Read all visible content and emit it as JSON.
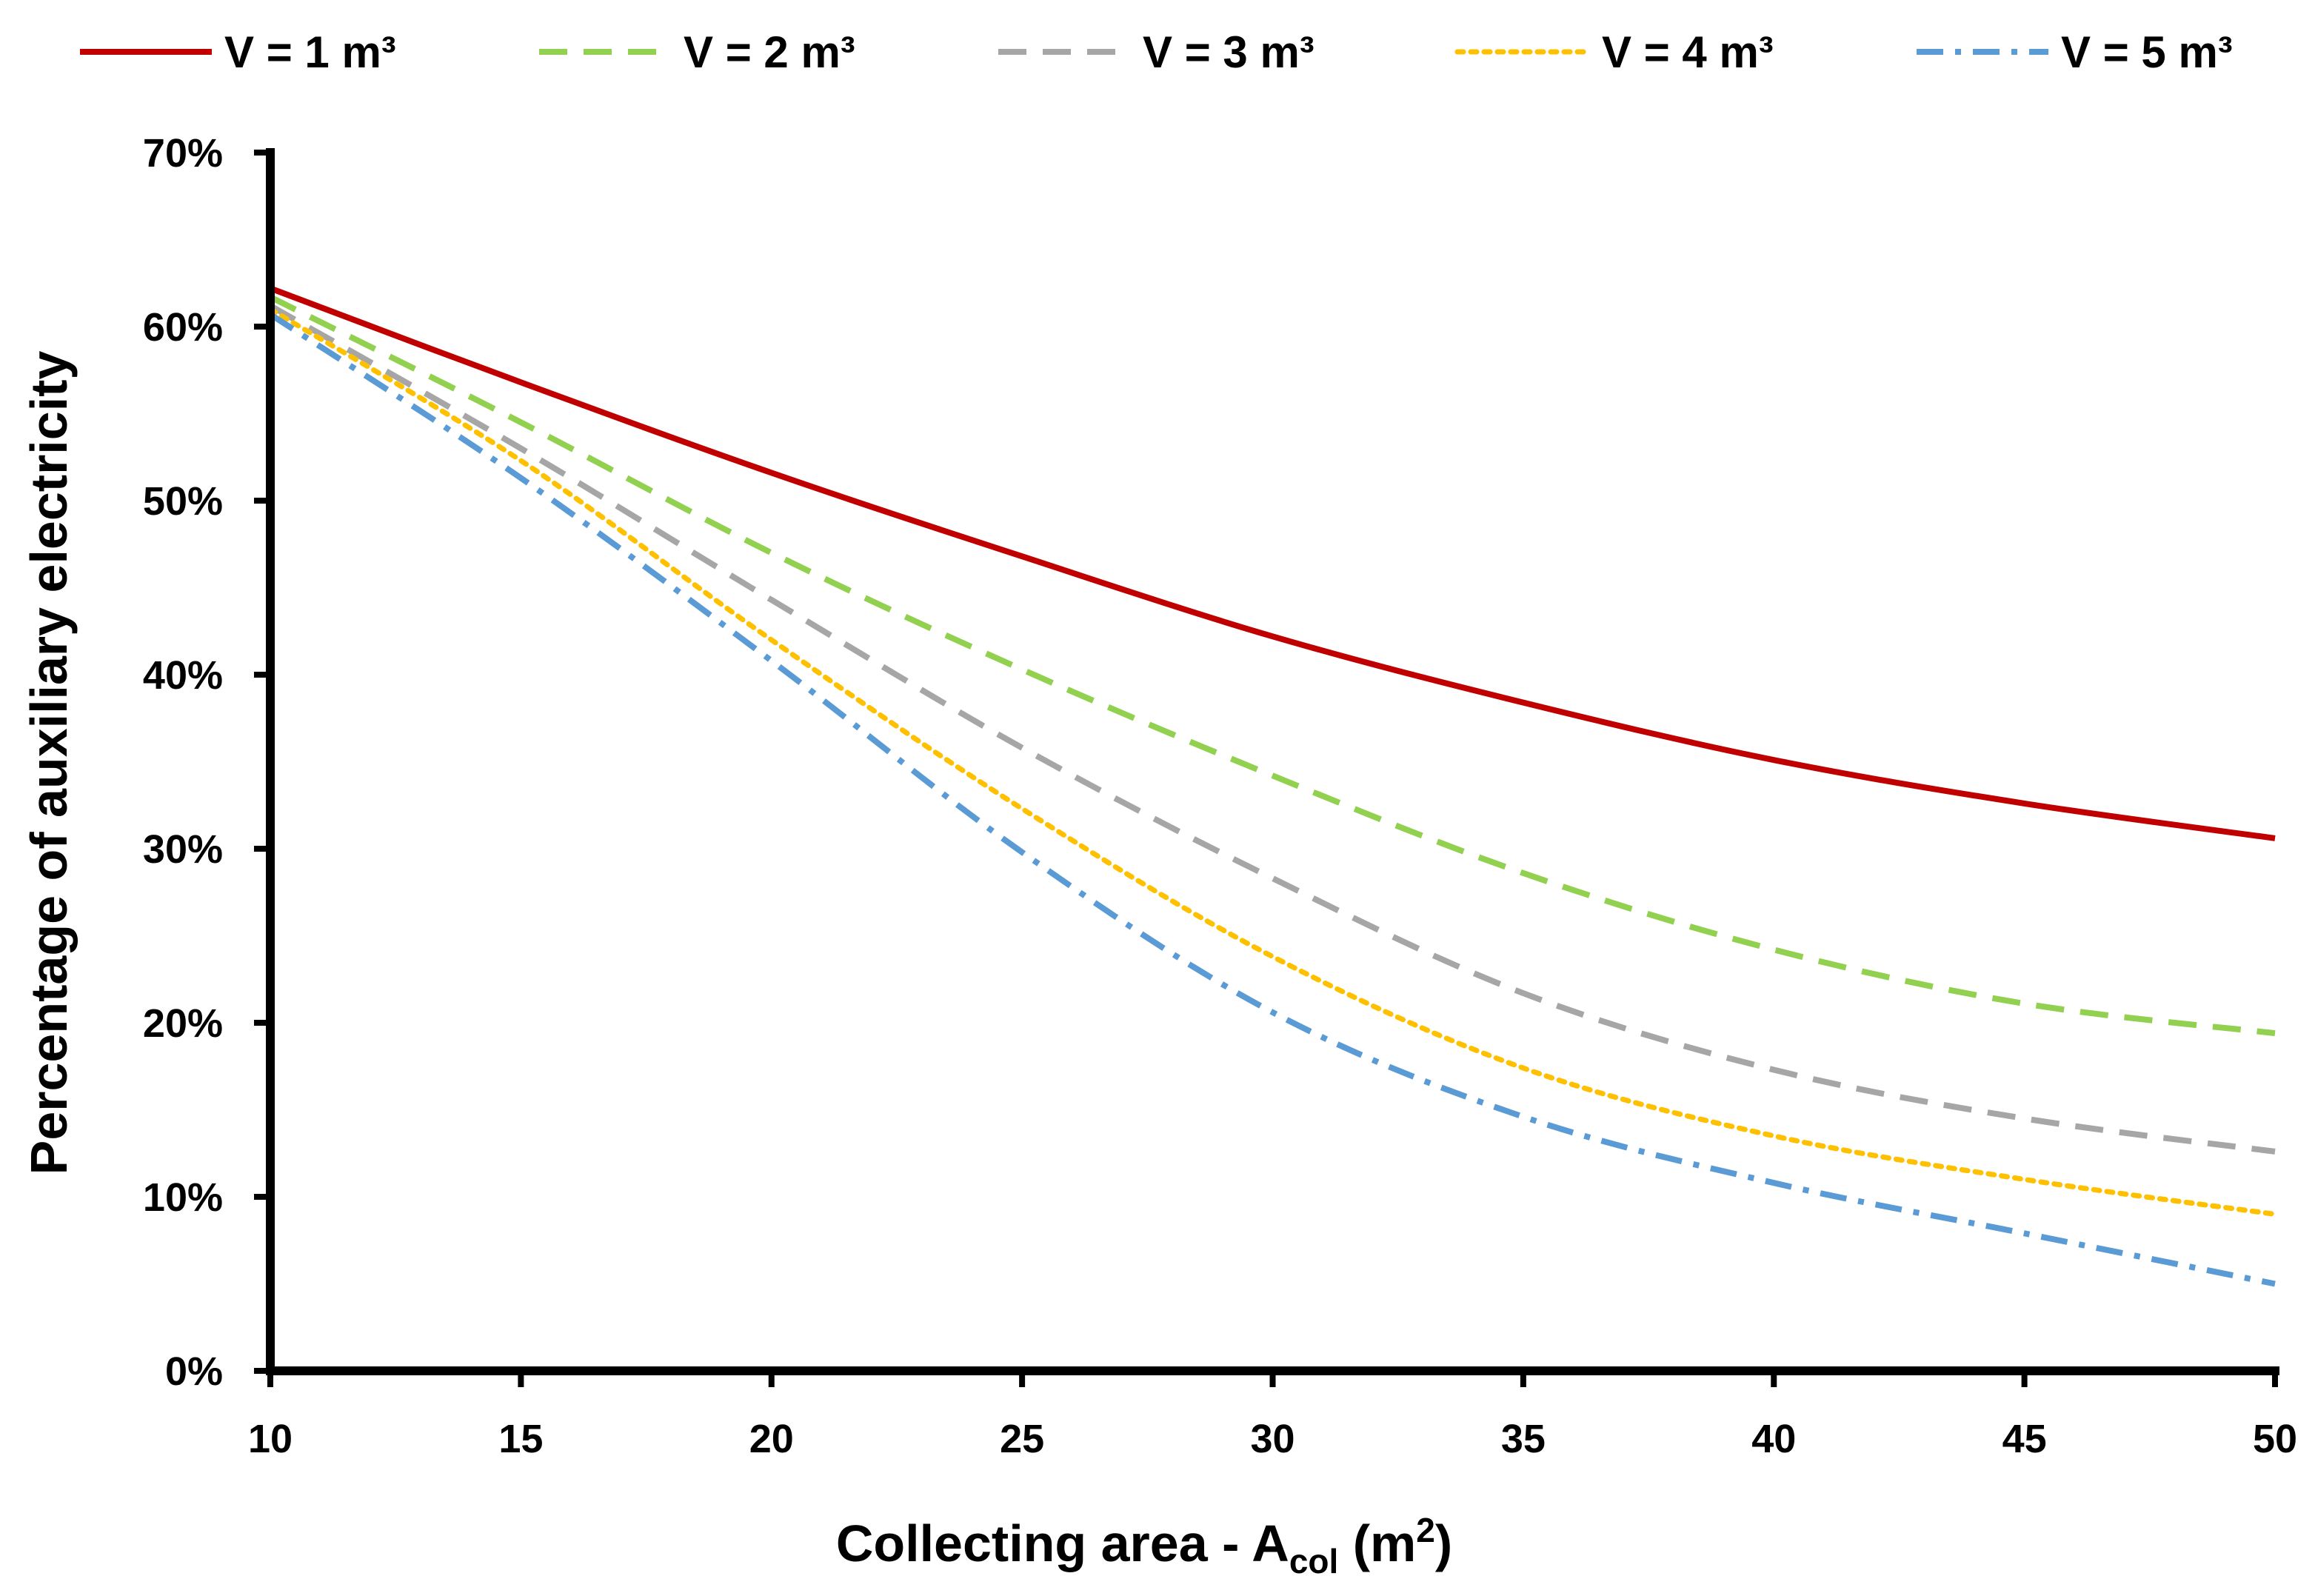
{
  "chart_data": {
    "type": "line",
    "title": "",
    "xlabel": "Collecting area - A",
    "xlabel_sub": "col",
    "xlabel_unit_open": " (m",
    "xlabel_unit_sup": "2",
    "xlabel_unit_close": ")",
    "ylabel": "Percentage of auxiliary electricity",
    "x": [
      10,
      15,
      20,
      25,
      30,
      35,
      40,
      45,
      50
    ],
    "xlim": [
      10,
      50
    ],
    "xticks": [
      "10",
      "15",
      "20",
      "25",
      "30",
      "35",
      "40",
      "45",
      "50"
    ],
    "ylim": [
      0,
      70
    ],
    "yticks": [
      "0%",
      "10%",
      "20%",
      "30%",
      "40%",
      "50%",
      "60%",
      "70%"
    ],
    "grid": false,
    "legend_position": "top",
    "series": [
      {
        "name": "V = 1 m³",
        "color": "#c00000",
        "style": "solid",
        "values": [
          62.2,
          56.8,
          51.6,
          46.8,
          42.2,
          38.4,
          35.1,
          32.6,
          30.6
        ]
      },
      {
        "name": "V = 2 m³",
        "color": "#92d050",
        "style": "dashed",
        "values": [
          61.7,
          54.5,
          47.0,
          40.3,
          34.2,
          28.6,
          24.2,
          21.1,
          19.4
        ]
      },
      {
        "name": "V = 3 m³",
        "color": "#a6a6a6",
        "style": "dashed",
        "values": [
          61.2,
          53.0,
          44.3,
          35.8,
          28.3,
          21.7,
          17.3,
          14.5,
          12.6
        ]
      },
      {
        "name": "V = 4 m³",
        "color": "#ffc000",
        "style": "dotted",
        "values": [
          61.0,
          52.3,
          42.0,
          32.3,
          23.8,
          17.4,
          13.5,
          11.0,
          9.0
        ]
      },
      {
        "name": "V = 5 m³",
        "color": "#5b9bd5",
        "style": "dashdot",
        "values": [
          60.7,
          51.3,
          40.8,
          29.8,
          20.6,
          14.6,
          10.8,
          7.9,
          5.0
        ]
      }
    ]
  }
}
